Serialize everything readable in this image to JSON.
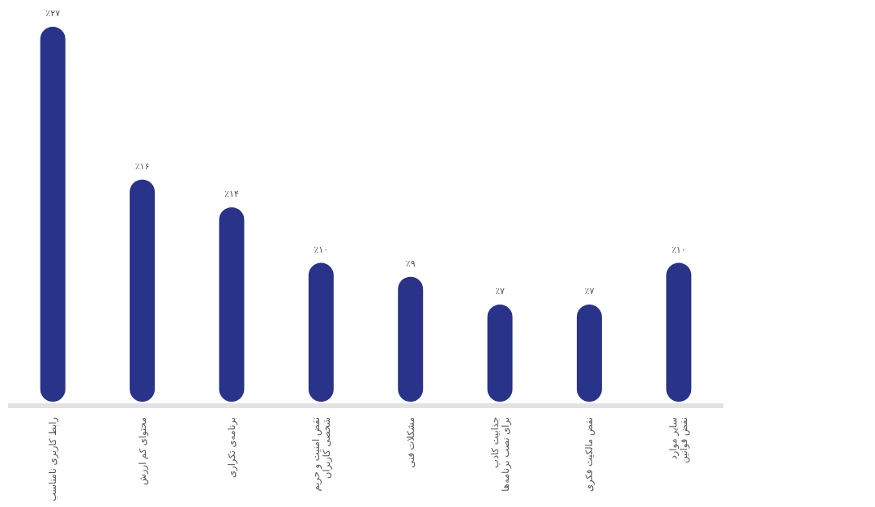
{
  "chart_data": {
    "type": "bar",
    "categories": [
      "رابط کاربری نامناسب",
      "محتوای کم ارزش",
      "برنامه‌ی تکراری",
      "نقض امنیت و حریم\nشخصی کاربران",
      "مشکلات فنی",
      "جذابیت کاذب\nبرای نصب برنامه‌ها",
      "نقض مالکیت فکری",
      "سایر موارد\nنقض قوانین"
    ],
    "values": [
      27,
      16,
      14,
      10,
      9,
      7,
      7,
      10
    ],
    "value_labels": [
      "٪۲۷",
      "٪۱۶",
      "٪۱۴",
      "٪۱۰",
      "٪۹",
      "٪۷",
      "٪۷",
      "٪۱۰"
    ],
    "color": "#283389"
  }
}
